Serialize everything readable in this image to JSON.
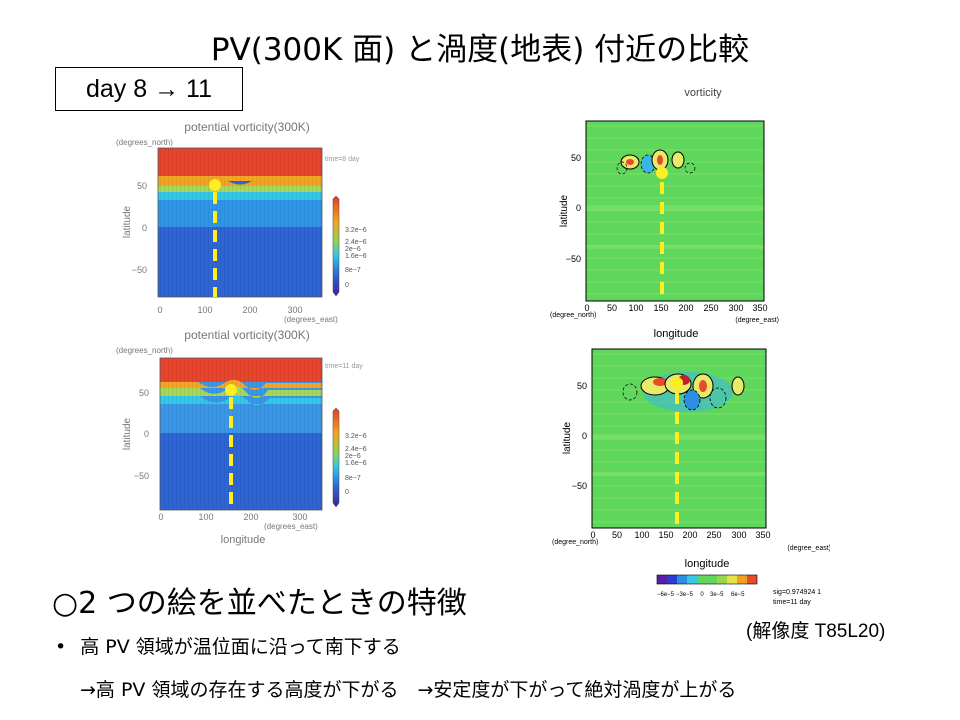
{
  "slide": {
    "title": "PV(300K 面) と渦度(地表) 付近の比較",
    "day_range": "day  8 → 11",
    "heading": "○2 つの絵を並べたときの特徴",
    "bullet_marker": "•",
    "bullet": "高 PV 領域が温位面に沿って南下する",
    "sub_bullet": "→高 PV 領域の存在する高度が下がる　→安定度が下がって絶対渦度が上がる",
    "resolution": "(解像度 T85L20)"
  },
  "pv_panels": {
    "title": "potential vorticity(300K)",
    "y_unit": "(degrees_north)",
    "y_label": "latitude",
    "x_unit": "(degrees_east)",
    "x_label": "longitude",
    "top_time": "time=8 day",
    "bottom_time": "time=11 day",
    "y_ticks": [
      "50",
      "0",
      "−50"
    ],
    "x_ticks": [
      "0",
      "100",
      "200",
      "300"
    ],
    "colorbar_labels": [
      "3.2e−6",
      "2.4e−6",
      "2e−6",
      "1.6e−6",
      "8e−7",
      "0"
    ]
  },
  "vort_panels": {
    "title": "vorticity",
    "y_label": "latitude",
    "y_unit": "(degree_north)",
    "x_unit": "(degree_east)",
    "x_label": "longitude",
    "y_ticks": [
      "50",
      "0",
      "−50"
    ],
    "x_ticks": [
      "0",
      "50",
      "100",
      "150",
      "200",
      "250",
      "300",
      "350"
    ],
    "colorbar_labels": [
      "−6e−5",
      "−3e−5",
      "0",
      "3e−5",
      "6e−5"
    ],
    "sig_text": "sig=0.974924 1",
    "time_text": "time=11 day"
  },
  "colors": {
    "pv_red": "#ee3a2a",
    "pv_blue": "#2e4fc3",
    "vort_green": "#5ed65a",
    "marker_yellow": "#ffee22"
  }
}
